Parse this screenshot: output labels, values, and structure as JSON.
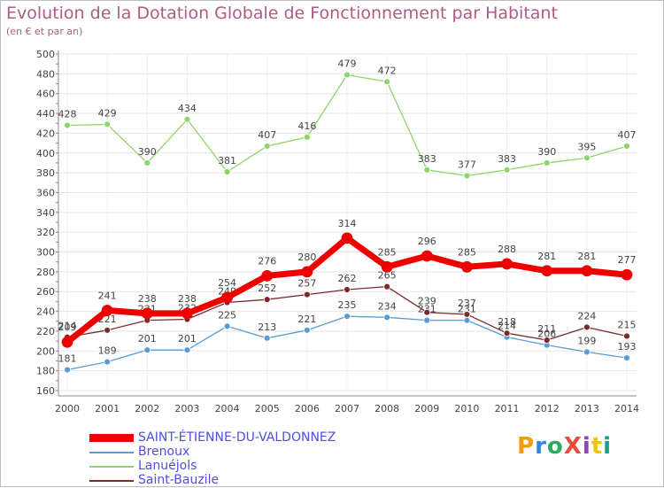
{
  "title": "Evolution de la Dotation Globale de Fonctionnement par Habitant",
  "subtitle": "(en € et par an)",
  "logo": {
    "text": "ProXiti",
    "colors": [
      "#f39c12",
      "#2e86de",
      "#27ae60",
      "#e74c3c",
      "#8e44ad",
      "#f1c40f",
      "#16a085"
    ]
  },
  "chart_data": {
    "type": "line",
    "title": "Evolution de la Dotation Globale de Fonctionnement par Habitant",
    "subtitle": "(en € et par an)",
    "xlabel": "",
    "ylabel": "",
    "ylim": [
      160,
      500
    ],
    "ytick_step": 20,
    "grid": true,
    "legend_position": "bottom-left",
    "x": [
      "2000",
      "2001",
      "2002",
      "2003",
      "2004",
      "2005",
      "2006",
      "2007",
      "2008",
      "2009",
      "2010",
      "2011",
      "2012",
      "2013",
      "2014"
    ],
    "series": [
      {
        "name": "Lanuéjols",
        "color": "#8ed46a",
        "width": 1.3,
        "values": [
          428,
          429,
          390,
          434,
          381,
          407,
          416,
          479,
          472,
          383,
          377,
          383,
          390,
          395,
          407
        ]
      },
      {
        "name": "Brenoux",
        "color": "#5b9bd5",
        "width": 1.3,
        "values": [
          181,
          189,
          201,
          201,
          225,
          213,
          221,
          235,
          234,
          231,
          231,
          214,
          206,
          199,
          193
        ]
      },
      {
        "name": "Saint-Bauzile",
        "color": "#7a2a2a",
        "width": 1.3,
        "values": [
          214,
          221,
          231,
          232,
          249,
          252,
          257,
          262,
          265,
          239,
          237,
          218,
          211,
          224,
          215
        ]
      },
      {
        "name": "SAINT-ÉTIENNE-DU-VALDONNEZ",
        "color": "#ee0000",
        "width": 7,
        "values": [
          209,
          241,
          238,
          238,
          254,
          276,
          280,
          314,
          285,
          296,
          285,
          288,
          281,
          281,
          277
        ]
      }
    ],
    "legend_order": [
      "SAINT-ÉTIENNE-DU-VALDONNEZ",
      "Brenoux",
      "Lanuéjols",
      "Saint-Bauzile"
    ]
  }
}
